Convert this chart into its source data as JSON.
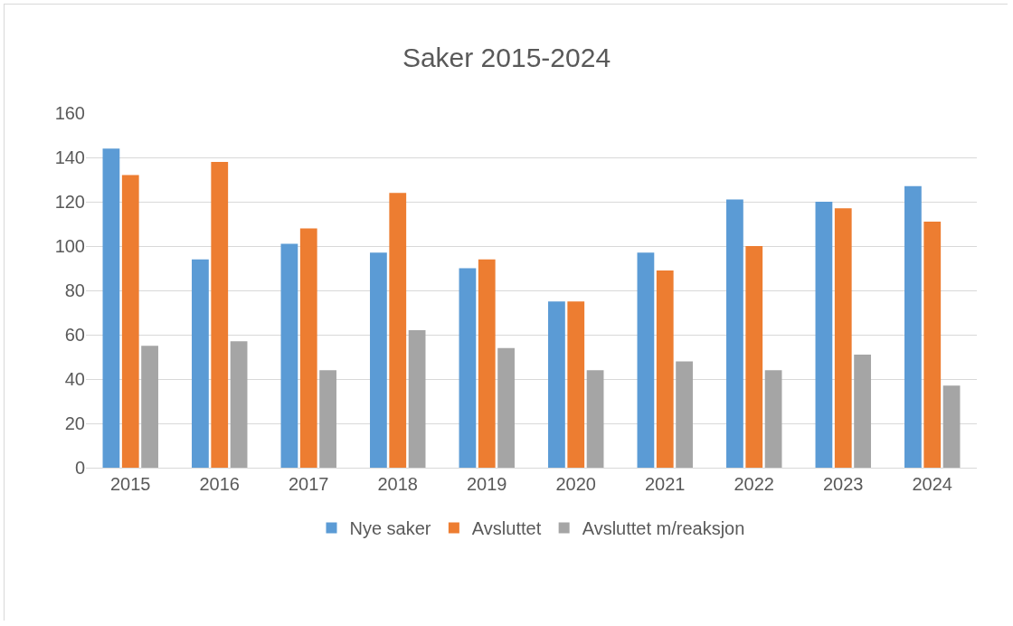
{
  "chart_data": {
    "type": "bar",
    "title": "Saker 2015-2024",
    "categories": [
      "2015",
      "2016",
      "2017",
      "2018",
      "2019",
      "2020",
      "2021",
      "2022",
      "2023",
      "2024"
    ],
    "series": [
      {
        "name": "Nye saker",
        "color": "#5b9bd5",
        "values": [
          144,
          94,
          101,
          97,
          90,
          75,
          97,
          121,
          120,
          127
        ]
      },
      {
        "name": "Avsluttet",
        "color": "#ed7d31",
        "values": [
          132,
          138,
          108,
          124,
          94,
          75,
          89,
          100,
          117,
          111
        ]
      },
      {
        "name": "Avsluttet m/reaksjon",
        "color": "#a5a5a5",
        "values": [
          55,
          57,
          44,
          62,
          54,
          44,
          48,
          44,
          51,
          37
        ]
      }
    ],
    "ylim": [
      0,
      160
    ],
    "yticks": [
      0,
      20,
      40,
      60,
      80,
      100,
      120,
      140,
      160
    ],
    "grid": "y",
    "legend": "bottom"
  }
}
